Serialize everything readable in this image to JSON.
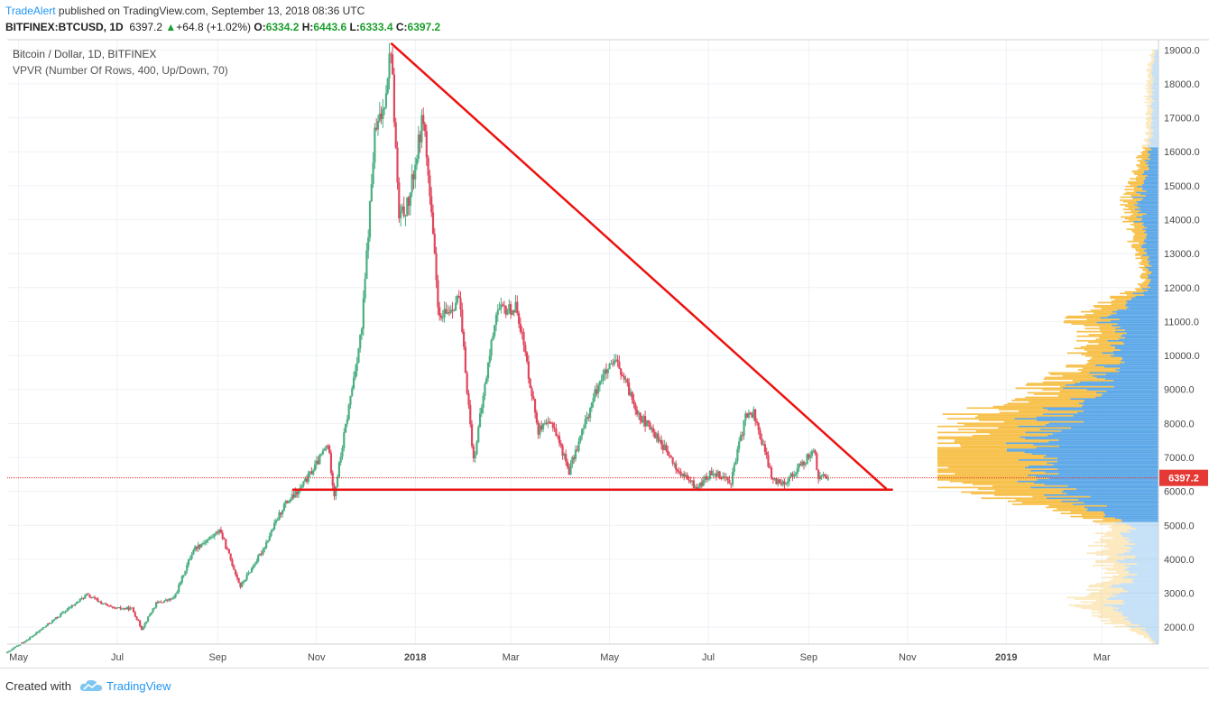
{
  "header": {
    "author": "TradeAlert",
    "published_text": "published on TradingView.com, September 13, 2018 08:36 UTC",
    "symbol": "BITFINEX:BTCUSD, 1D",
    "last": "6397.2",
    "change": "+64.8 (+1.02%)",
    "open_label": "O:",
    "open": "6334.2",
    "high_label": "H:",
    "high": "6443.6",
    "low_label": "L:",
    "low": "6333.4",
    "close_label": "C:",
    "close": "6397.2"
  },
  "overlay": {
    "title": "Bitcoin / Dollar, 1D, BITFINEX",
    "indicator": "VPVR (Number Of Rows, 400, Up/Down, 70)"
  },
  "footer": {
    "created_with": "Created with",
    "brand": "TradingView"
  },
  "colors": {
    "up": "#4caf83",
    "down": "#e0475d",
    "trend": "#ee1111",
    "vp_up": "#5da8e8",
    "vp_down": "#f7c04a",
    "grid": "#eef1f5",
    "price_line": "#e53935"
  },
  "chart_data": {
    "type": "candlestick",
    "title": "Bitcoin / Dollar, 1D, BITFINEX",
    "ylim": [
      1500,
      19300
    ],
    "y_ticks": [
      2000,
      3000,
      4000,
      5000,
      6000,
      7000,
      8000,
      9000,
      10000,
      11000,
      12000,
      13000,
      14000,
      15000,
      16000,
      17000,
      18000,
      19000
    ],
    "y_tick_labels": [
      "2000.0",
      "3000.0",
      "4000.0",
      "5000.0",
      "6000.0",
      "7000.0",
      "8000.0",
      "9000.0",
      "10000.0",
      "11000.0",
      "12000.0",
      "13000.0",
      "14000.0",
      "15000.0",
      "16000.0",
      "17000.0",
      "18000.0",
      "19000.0"
    ],
    "x_range": [
      "2017-04-24",
      "2019-04-05"
    ],
    "x_ticks": [
      {
        "date": "2017-05-01",
        "label": "May"
      },
      {
        "date": "2017-07-01",
        "label": "Jul"
      },
      {
        "date": "2017-09-01",
        "label": "Sep"
      },
      {
        "date": "2017-11-01",
        "label": "Nov"
      },
      {
        "date": "2018-01-01",
        "label": "2018"
      },
      {
        "date": "2018-03-01",
        "label": "Mar"
      },
      {
        "date": "2018-05-01",
        "label": "May"
      },
      {
        "date": "2018-07-01",
        "label": "Jul"
      },
      {
        "date": "2018-09-01",
        "label": "Sep"
      },
      {
        "date": "2018-11-01",
        "label": "Nov"
      },
      {
        "date": "2019-01-01",
        "label": "2019"
      },
      {
        "date": "2019-03-01",
        "label": "Mar"
      }
    ],
    "price_path": [
      [
        "2017-04-24",
        1250
      ],
      [
        "2017-05-10",
        1750
      ],
      [
        "2017-05-25",
        2300
      ],
      [
        "2017-06-12",
        2950
      ],
      [
        "2017-06-28",
        2550
      ],
      [
        "2017-07-10",
        2550
      ],
      [
        "2017-07-16",
        1950
      ],
      [
        "2017-07-25",
        2700
      ],
      [
        "2017-08-05",
        2850
      ],
      [
        "2017-08-17",
        4300
      ],
      [
        "2017-08-31",
        4750
      ],
      [
        "2017-09-02",
        4900
      ],
      [
        "2017-09-15",
        3200
      ],
      [
        "2017-09-28",
        4200
      ],
      [
        "2017-10-12",
        5600
      ],
      [
        "2017-10-21",
        6000
      ],
      [
        "2017-11-01",
        6800
      ],
      [
        "2017-11-08",
        7400
      ],
      [
        "2017-11-12",
        5900
      ],
      [
        "2017-11-20",
        8200
      ],
      [
        "2017-11-29",
        10800
      ],
      [
        "2017-12-07",
        16500
      ],
      [
        "2017-12-12",
        17200
      ],
      [
        "2017-12-17",
        19100
      ],
      [
        "2017-12-22",
        14000
      ],
      [
        "2017-12-28",
        14500
      ],
      [
        "2018-01-06",
        17100
      ],
      [
        "2018-01-16",
        11000
      ],
      [
        "2018-01-28",
        11700
      ],
      [
        "2018-02-06",
        6900
      ],
      [
        "2018-02-20",
        11300
      ],
      [
        "2018-03-05",
        11400
      ],
      [
        "2018-03-18",
        7800
      ],
      [
        "2018-03-27",
        8000
      ],
      [
        "2018-04-06",
        6600
      ],
      [
        "2018-04-25",
        9300
      ],
      [
        "2018-05-05",
        9800
      ],
      [
        "2018-05-20",
        8200
      ],
      [
        "2018-06-01",
        7500
      ],
      [
        "2018-06-12",
        6600
      ],
      [
        "2018-06-24",
        6100
      ],
      [
        "2018-07-04",
        6600
      ],
      [
        "2018-07-15",
        6300
      ],
      [
        "2018-07-24",
        8200
      ],
      [
        "2018-07-29",
        8300
      ],
      [
        "2018-08-10",
        6300
      ],
      [
        "2018-08-18",
        6300
      ],
      [
        "2018-08-30",
        6900
      ],
      [
        "2018-09-04",
        7300
      ],
      [
        "2018-09-07",
        6400
      ],
      [
        "2018-09-13",
        6397
      ]
    ],
    "annotations": {
      "triangle_top": {
        "date": "2017-12-17",
        "price": 19200
      },
      "triangle_apex": {
        "date": "2018-10-19",
        "price": 6070
      },
      "support_line": {
        "start": "2017-10-17",
        "end": "2018-10-23",
        "price": 6050
      },
      "last_price_line": 6397.2
    },
    "volume_profile_extent": [
      1500,
      19000
    ]
  }
}
